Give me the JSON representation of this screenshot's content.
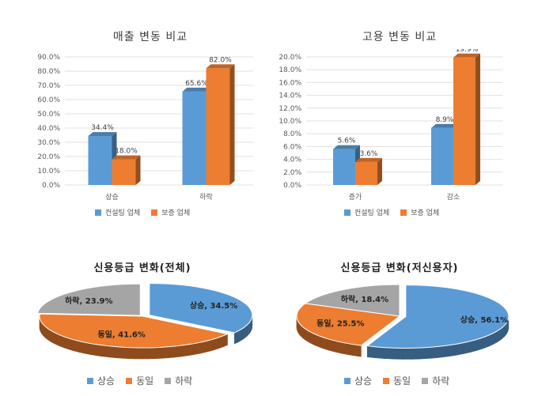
{
  "colors": {
    "blue": "#5b9bd5",
    "orange": "#ed7d31",
    "gray": "#a5a5a5"
  },
  "chart_data": [
    {
      "type": "bar",
      "title": "매출 변동 비교",
      "categories": [
        "상승",
        "하락"
      ],
      "series": [
        {
          "name": "컨설팅 업체",
          "values": [
            34.4,
            65.6
          ],
          "labels": [
            "34.4%",
            "65.6%"
          ]
        },
        {
          "name": "보증 업체",
          "values": [
            18.0,
            82.0
          ],
          "labels": [
            "18.0%",
            "82.0%"
          ]
        }
      ],
      "ylim": [
        0,
        90
      ],
      "yticks": [
        "0.0%",
        "10.0%",
        "20.0%",
        "30.0%",
        "40.0%",
        "50.0%",
        "60.0%",
        "70.0%",
        "80.0%",
        "90.0%"
      ],
      "grid": true,
      "legend": "bottom"
    },
    {
      "type": "bar",
      "title": "고용 변동 비교",
      "categories": [
        "증가",
        "감소"
      ],
      "series": [
        {
          "name": "컨설팅 업체",
          "values": [
            5.6,
            8.9
          ],
          "labels": [
            "5.6%",
            "8.9%"
          ]
        },
        {
          "name": "보증 업체",
          "values": [
            3.6,
            19.9
          ],
          "labels": [
            "3.6%",
            "19.9%"
          ]
        }
      ],
      "ylim": [
        0,
        20
      ],
      "yticks": [
        "0.0%",
        "2.0%",
        "4.0%",
        "6.0%",
        "8.0%",
        "10.0%",
        "12.0%",
        "14.0%",
        "16.0%",
        "18.0%",
        "20.0%"
      ],
      "grid": true,
      "legend": "bottom"
    },
    {
      "type": "pie",
      "title": "신용등급 변화(전체)",
      "categories": [
        "상승",
        "동일",
        "하락"
      ],
      "values": [
        34.5,
        41.6,
        23.9
      ],
      "labels": [
        "상승, 34.5%",
        "동일, 41.6%",
        "하락, 23.9%"
      ],
      "legend": "bottom"
    },
    {
      "type": "pie",
      "title": "신용등급 변화(저신용자)",
      "categories": [
        "상승",
        "동일",
        "하락"
      ],
      "values": [
        56.1,
        25.5,
        18.4
      ],
      "labels": [
        "상승, 56.1%",
        "동일, 25.5%",
        "하락, 18.4%"
      ],
      "legend": "bottom"
    }
  ]
}
